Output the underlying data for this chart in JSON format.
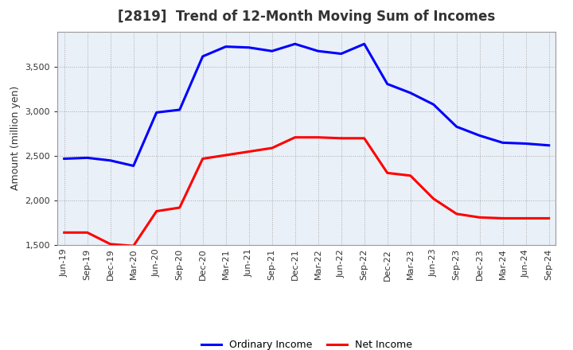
{
  "title": "[2819]  Trend of 12-Month Moving Sum of Incomes",
  "ylabel": "Amount (million yen)",
  "x_labels": [
    "Jun-19",
    "Sep-19",
    "Dec-19",
    "Mar-20",
    "Jun-20",
    "Sep-20",
    "Dec-20",
    "Mar-21",
    "Jun-21",
    "Sep-21",
    "Dec-21",
    "Mar-22",
    "Jun-22",
    "Sep-22",
    "Dec-22",
    "Mar-23",
    "Jun-23",
    "Sep-23",
    "Dec-23",
    "Mar-24",
    "Jun-24",
    "Sep-24"
  ],
  "ordinary_income": [
    2470,
    2480,
    2450,
    2390,
    2990,
    3020,
    3620,
    3730,
    3720,
    3680,
    3760,
    3680,
    3650,
    3760,
    3310,
    3210,
    3080,
    2830,
    2730,
    2650,
    2640,
    2620
  ],
  "net_income": [
    1640,
    1640,
    1510,
    1490,
    1880,
    1920,
    2470,
    2510,
    2550,
    2590,
    2710,
    2710,
    2700,
    2700,
    2310,
    2280,
    2020,
    1850,
    1810,
    1800,
    1800,
    1800
  ],
  "ordinary_color": "#0000FF",
  "net_color": "#FF0000",
  "ylim": [
    1500,
    3900
  ],
  "yticks": [
    1500,
    2000,
    2500,
    3000,
    3500
  ],
  "plot_bg_color": "#EAF0F8",
  "fig_bg_color": "#FFFFFF",
  "grid_color": "#AAAAAA",
  "title_fontsize": 12,
  "title_color": "#333333",
  "tick_fontsize": 8,
  "ylabel_fontsize": 9,
  "legend_labels": [
    "Ordinary Income",
    "Net Income"
  ]
}
